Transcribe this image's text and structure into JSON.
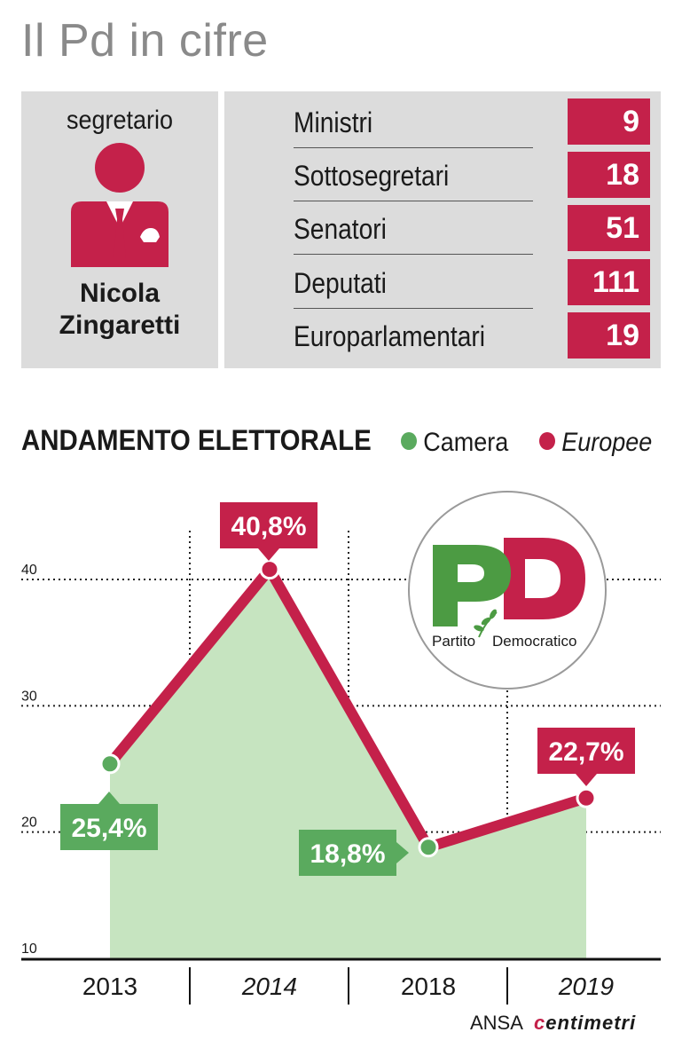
{
  "title": "Il Pd in cifre",
  "leader": {
    "role": "segretario",
    "name_line1": "Nicola",
    "name_line2": "Zingaretti"
  },
  "stats": [
    {
      "label": "Ministri",
      "value": "9"
    },
    {
      "label": "Sottosegretari",
      "value": "18"
    },
    {
      "label": "Senatori",
      "value": "51"
    },
    {
      "label": "Deputati",
      "value": "111"
    },
    {
      "label": "Europarlamentari",
      "value": "19"
    }
  ],
  "section_title": "ANDAMENTO ELETTORALE",
  "legend": {
    "camera": "Camera",
    "europee": "Europee"
  },
  "logo": {
    "letters": "PD",
    "text_left": "Partito",
    "text_right": "Democratico"
  },
  "credit": {
    "source": "ANSA",
    "brand_prefix": "c",
    "brand_rest": "entimetri"
  },
  "colors": {
    "camera": "#5aaa5e",
    "europee": "#c4214a",
    "area": "#c6e4c0",
    "panel": "#dcdcdc"
  },
  "chart_data": {
    "type": "line",
    "categories": [
      "2013",
      "2014",
      "2018",
      "2019"
    ],
    "italic_categories": [
      "2014",
      "2019"
    ],
    "series": [
      {
        "name": "Camera",
        "x": [
          "2013",
          "2018"
        ],
        "values": [
          25.4,
          18.8
        ],
        "labels": [
          "25,4%",
          "18,8%"
        ]
      },
      {
        "name": "Europee",
        "x": [
          "2014",
          "2019"
        ],
        "values": [
          40.8,
          22.7
        ],
        "labels": [
          "40,8%",
          "22,7%"
        ]
      }
    ],
    "path_order": [
      25.4,
      40.8,
      18.8,
      22.7
    ],
    "yticks": [
      "10",
      "20",
      "30",
      "40"
    ],
    "ylim": [
      10,
      40
    ],
    "grid": true,
    "legend_position": "top-right"
  }
}
